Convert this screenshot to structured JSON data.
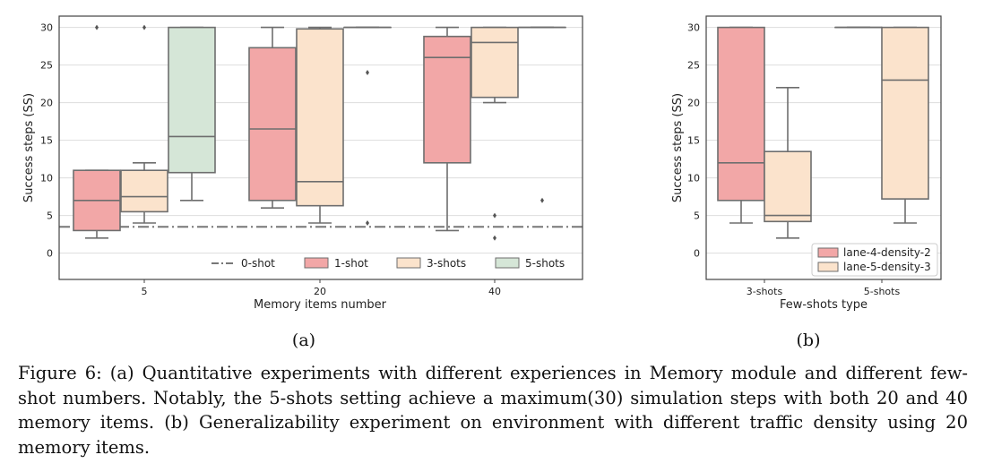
{
  "chart_data": [
    {
      "type": "box",
      "panel_label": "(a)",
      "xlabel": "Memory items number",
      "ylabel": "Success steps (SS)",
      "ylim": [
        -3.5,
        31.5
      ],
      "yticks": [
        0,
        5,
        10,
        15,
        20,
        25,
        30
      ],
      "categories": [
        "5",
        "20",
        "40"
      ],
      "grid": "horizontal",
      "legend_position": "lower-center",
      "legend": [
        "0-shot",
        "1-shot",
        "3-shots",
        "5-shots"
      ],
      "reference_line": {
        "name": "0-shot",
        "y": 3.5,
        "style": "dash-dot"
      },
      "series": [
        {
          "name": "1-shot",
          "color": "#f2a7a7",
          "boxes": [
            {
              "category": "5",
              "whislo": 2,
              "q1": 3,
              "median": 7,
              "q3": 11,
              "whishi": 11,
              "fliers": [
                30
              ]
            },
            {
              "category": "20",
              "whislo": 6,
              "q1": 7,
              "median": 16.5,
              "q3": 27.3,
              "whishi": 30,
              "fliers": []
            },
            {
              "category": "40",
              "whislo": 3,
              "q1": 12,
              "median": 26,
              "q3": 28.8,
              "whishi": 30,
              "fliers": []
            }
          ]
        },
        {
          "name": "3-shots",
          "color": "#fbe3cc",
          "boxes": [
            {
              "category": "5",
              "whislo": 4,
              "q1": 5.5,
              "median": 7.5,
              "q3": 11,
              "whishi": 12,
              "fliers": [
                30
              ]
            },
            {
              "category": "20",
              "whislo": 4,
              "q1": 6.3,
              "median": 9.5,
              "q3": 29.8,
              "whishi": 30,
              "fliers": []
            },
            {
              "category": "40",
              "whislo": 20,
              "q1": 20.7,
              "median": 28,
              "q3": 30,
              "whishi": 30,
              "fliers": [
                5,
                2
              ]
            }
          ]
        },
        {
          "name": "5-shots",
          "color": "#d5e6d7",
          "boxes": [
            {
              "category": "5",
              "whislo": 7,
              "q1": 10.7,
              "median": 15.5,
              "q3": 30,
              "whishi": 30,
              "fliers": []
            },
            {
              "category": "20",
              "whislo": 30,
              "q1": 30,
              "median": 30,
              "q3": 30,
              "whishi": 30,
              "fliers": [
                24,
                4
              ]
            },
            {
              "category": "40",
              "whislo": 30,
              "q1": 30,
              "median": 30,
              "q3": 30,
              "whishi": 30,
              "fliers": [
                7
              ]
            }
          ]
        }
      ]
    },
    {
      "type": "box",
      "panel_label": "(b)",
      "xlabel": "Few-shots type",
      "ylabel": "Success steps (SS)",
      "ylim": [
        -3.5,
        31.5
      ],
      "yticks": [
        0,
        5,
        10,
        15,
        20,
        25,
        30
      ],
      "categories": [
        "3-shots",
        "5-shots"
      ],
      "grid": "horizontal",
      "legend_position": "lower-right",
      "legend": [
        "lane-4-density-2",
        "lane-5-density-3"
      ],
      "series": [
        {
          "name": "lane-4-density-2",
          "color": "#f2a7a7",
          "boxes": [
            {
              "category": "3-shots",
              "whislo": 4,
              "q1": 7,
              "median": 12,
              "q3": 30,
              "whishi": 30,
              "fliers": []
            },
            {
              "category": "5-shots",
              "whislo": 30,
              "q1": 30,
              "median": 30,
              "q3": 30,
              "whishi": 30,
              "fliers": []
            }
          ]
        },
        {
          "name": "lane-5-density-3",
          "color": "#fbe3cc",
          "boxes": [
            {
              "category": "3-shots",
              "whislo": 2,
              "q1": 4.2,
              "median": 5,
              "q3": 13.5,
              "whishi": 22,
              "fliers": []
            },
            {
              "category": "5-shots",
              "whislo": 4,
              "q1": 7.2,
              "median": 23,
              "q3": 30,
              "whishi": 30,
              "fliers": []
            }
          ]
        }
      ]
    }
  ],
  "caption": "Figure 6: (a) Quantitative experiments with different experiences in Memory module and different few-shot numbers. Notably, the 5-shots setting achieve a maximum(30) simulation steps with both 20 and 40 memory items. (b) Generalizability experiment on environment with different traffic density using 20 memory items.",
  "colors": {
    "frame": "#444444",
    "box_edge": "#6e6e6e",
    "grid": "#dddddd"
  }
}
